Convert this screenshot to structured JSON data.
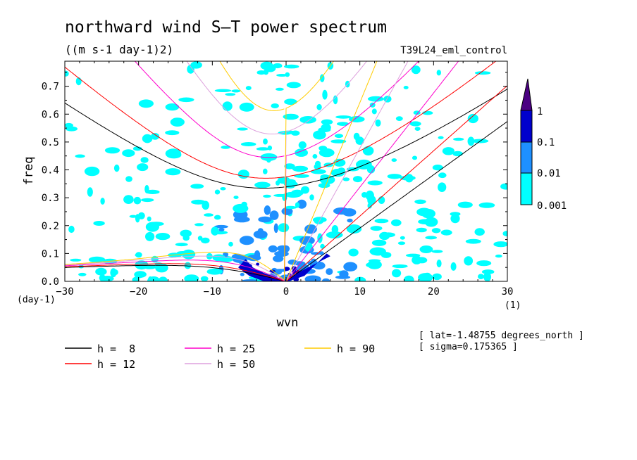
{
  "chart_data": {
    "type": "heatmap",
    "title": "northward wind S—T power spectrum",
    "subtitle": "((m s-1 day-1)2)",
    "run_label": "T39L24_eml_control",
    "xlabel": "wvn",
    "ylabel": "freq",
    "x_unit": "(1)",
    "y_unit": "(day-1)",
    "xlim": [
      -30,
      30
    ],
    "ylim": [
      0,
      0.79
    ],
    "x_ticks": [
      -30,
      -20,
      -10,
      0,
      10,
      20,
      30
    ],
    "x_tick_labels": [
      "−30",
      "−20",
      "−10",
      "0",
      "10",
      "20",
      "30"
    ],
    "y_ticks": [
      0.0,
      0.1,
      0.2,
      0.3,
      0.4,
      0.5,
      0.6,
      0.7
    ],
    "y_tick_labels": [
      "0.0",
      "0.1",
      "0.2",
      "0.3",
      "0.4",
      "0.5",
      "0.6",
      "0.7"
    ],
    "colorbar": {
      "levels": [
        "0.001",
        "0.01",
        "0.1",
        "1"
      ],
      "colors": [
        "#00ffff",
        "#1e90ff",
        "#0000cd",
        "#4b0082"
      ]
    },
    "info": [
      "[ lat=-1.48755 degrees_north ]",
      "[ sigma=0.175365 ]"
    ],
    "dispersion_curves": [
      {
        "name": "h =  8",
        "h": 8,
        "color": "#000000"
      },
      {
        "name": "h = 12",
        "h": 12,
        "color": "#ff0000"
      },
      {
        "name": "h = 25",
        "h": 25,
        "color": "#ff00cc"
      },
      {
        "name": "h = 50",
        "h": 50,
        "color": "#dda0dd"
      },
      {
        "name": "h = 90",
        "h": 90,
        "color": "#ffcc00"
      }
    ]
  }
}
